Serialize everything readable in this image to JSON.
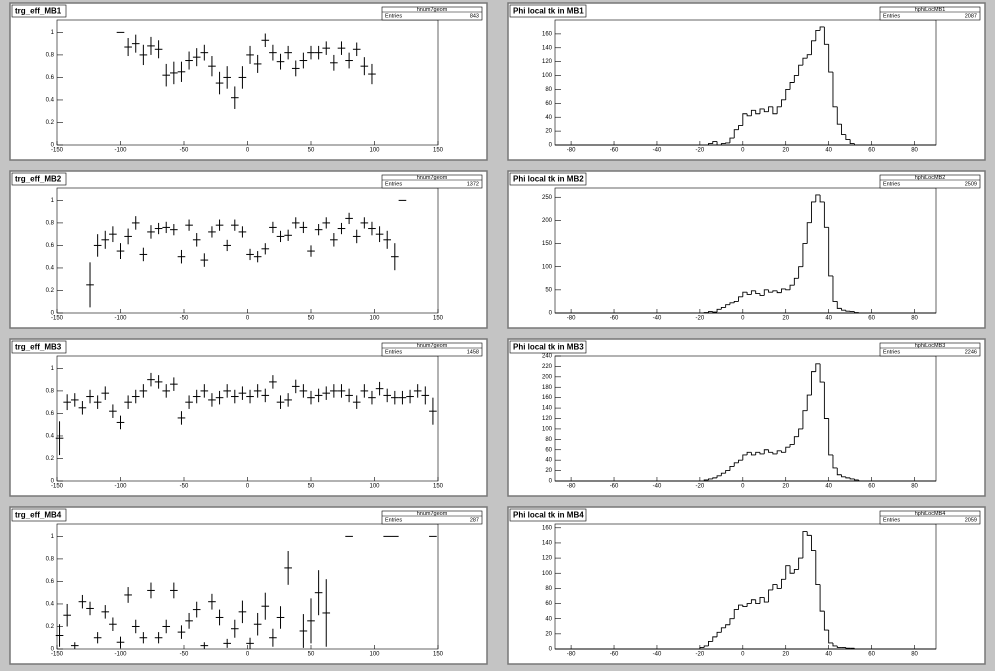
{
  "chart_data": [
    {
      "type": "errorbar",
      "title": "trg_eff_MB1",
      "stats_name": "hnum7geom",
      "entries_label": "Entries",
      "entries": 843,
      "xerr": 3,
      "x": [
        -100,
        -94,
        -88,
        -82,
        -76,
        -70,
        -64,
        -58,
        -52,
        -46,
        -40,
        -34,
        -28,
        -22,
        -16,
        -10,
        -4,
        2,
        8,
        14,
        20,
        26,
        32,
        38,
        44,
        50,
        56,
        62,
        68,
        74,
        80,
        86,
        92,
        98
      ],
      "values": [
        1.0,
        0.87,
        0.9,
        0.8,
        0.88,
        0.85,
        0.62,
        0.64,
        0.65,
        0.75,
        0.78,
        0.82,
        0.7,
        0.55,
        0.6,
        0.42,
        0.6,
        0.8,
        0.72,
        0.93,
        0.82,
        0.74,
        0.82,
        0.68,
        0.75,
        0.82,
        0.82,
        0.86,
        0.73,
        0.86,
        0.75,
        0.85,
        0.7,
        0.63
      ],
      "errors": [
        0,
        0.08,
        0.08,
        0.09,
        0.08,
        0.08,
        0.1,
        0.1,
        0.09,
        0.08,
        0.08,
        0.07,
        0.09,
        0.1,
        0.1,
        0.1,
        0.1,
        0.08,
        0.08,
        0.06,
        0.07,
        0.07,
        0.06,
        0.07,
        0.07,
        0.06,
        0.06,
        0.06,
        0.07,
        0.06,
        0.07,
        0.06,
        0.08,
        0.09
      ],
      "xlim": [
        -150,
        150
      ],
      "xticks": [
        -150,
        -100,
        -50,
        0,
        50,
        100,
        150
      ],
      "ylim": [
        0,
        1.11
      ],
      "yticks": [
        0,
        0.2,
        0.4,
        0.6,
        0.8,
        1
      ]
    },
    {
      "type": "histogram",
      "title": "Phi local tk in MB1",
      "stats_name": "hphiLocMB1",
      "entries_label": "Entries",
      "entries": 2087,
      "bins": [
        -20,
        -18,
        -16,
        -14,
        -12,
        -10,
        -8,
        -6,
        -4,
        -2,
        0,
        2,
        4,
        6,
        8,
        10,
        12,
        14,
        16,
        18,
        20,
        22,
        24,
        26,
        28,
        30,
        32,
        34,
        36,
        38,
        40,
        42,
        44,
        46,
        48,
        50,
        52,
        54,
        56
      ],
      "counts": [
        0,
        0,
        2,
        5,
        0,
        2,
        3,
        10,
        22,
        28,
        45,
        42,
        50,
        45,
        52,
        48,
        55,
        45,
        55,
        65,
        80,
        90,
        100,
        115,
        125,
        130,
        150,
        165,
        170,
        145,
        105,
        55,
        30,
        15,
        8,
        2,
        0,
        0
      ],
      "xlim": [
        -87.5,
        90
      ],
      "xticks": [
        -80,
        -60,
        -40,
        -20,
        0,
        20,
        40,
        60,
        80
      ],
      "ylim": [
        0,
        180
      ],
      "yticks": [
        0,
        20,
        40,
        60,
        80,
        100,
        120,
        140,
        160
      ]
    },
    {
      "type": "errorbar",
      "title": "trg_eff_MB2",
      "stats_name": "hnum7geom",
      "entries_label": "Entries",
      "entries": 1372,
      "xerr": 3,
      "x": [
        -124,
        -118,
        -112,
        -106,
        -100,
        -94,
        -88,
        -82,
        -76,
        -70,
        -64,
        -58,
        -52,
        -46,
        -40,
        -34,
        -28,
        -22,
        -16,
        -10,
        -4,
        2,
        8,
        14,
        20,
        26,
        32,
        38,
        44,
        50,
        56,
        62,
        68,
        74,
        80,
        86,
        92,
        98,
        104,
        110,
        116,
        122
      ],
      "values": [
        0.25,
        0.6,
        0.65,
        0.7,
        0.55,
        0.68,
        0.8,
        0.52,
        0.72,
        0.75,
        0.76,
        0.74,
        0.5,
        0.78,
        0.65,
        0.47,
        0.72,
        0.78,
        0.6,
        0.78,
        0.72,
        0.52,
        0.5,
        0.57,
        0.76,
        0.68,
        0.69,
        0.8,
        0.76,
        0.55,
        0.74,
        0.8,
        0.65,
        0.75,
        0.84,
        0.68,
        0.8,
        0.75,
        0.7,
        0.65,
        0.5,
        1.0
      ],
      "errors": [
        0.2,
        0.1,
        0.08,
        0.07,
        0.07,
        0.07,
        0.06,
        0.06,
        0.06,
        0.05,
        0.05,
        0.05,
        0.06,
        0.05,
        0.06,
        0.06,
        0.05,
        0.05,
        0.05,
        0.05,
        0.05,
        0.05,
        0.05,
        0.05,
        0.05,
        0.05,
        0.05,
        0.05,
        0.05,
        0.05,
        0.05,
        0.05,
        0.06,
        0.05,
        0.05,
        0.06,
        0.05,
        0.06,
        0.07,
        0.08,
        0.12,
        0
      ],
      "xlim": [
        -150,
        150
      ],
      "xticks": [
        -150,
        -100,
        -50,
        0,
        50,
        100,
        150
      ],
      "ylim": [
        0,
        1.11
      ],
      "yticks": [
        0,
        0.2,
        0.4,
        0.6,
        0.8,
        1
      ]
    },
    {
      "type": "histogram",
      "title": "Phi local tk in MB2",
      "stats_name": "hphiLocMB2",
      "entries_label": "Entries",
      "entries": 2509,
      "bins": [
        -20,
        -18,
        -16,
        -14,
        -12,
        -10,
        -8,
        -6,
        -4,
        -2,
        0,
        2,
        4,
        6,
        8,
        10,
        12,
        14,
        16,
        18,
        20,
        22,
        24,
        26,
        28,
        30,
        32,
        34,
        36,
        38,
        40,
        42,
        44,
        46,
        48,
        50,
        52,
        54,
        56
      ],
      "counts": [
        0,
        1,
        3,
        2,
        8,
        12,
        18,
        22,
        25,
        35,
        45,
        40,
        48,
        42,
        38,
        50,
        45,
        48,
        44,
        52,
        50,
        60,
        75,
        100,
        150,
        195,
        240,
        255,
        240,
        185,
        80,
        25,
        10,
        6,
        4,
        3,
        1,
        0
      ],
      "xlim": [
        -87.5,
        90
      ],
      "xticks": [
        -80,
        -60,
        -40,
        -20,
        0,
        20,
        40,
        60,
        80
      ],
      "ylim": [
        0,
        270
      ],
      "yticks": [
        0,
        50,
        100,
        150,
        200,
        250
      ]
    },
    {
      "type": "errorbar",
      "title": "trg_eff_MB3",
      "stats_name": "hnum7geom",
      "entries_label": "Entries",
      "entries": 1458,
      "xerr": 3,
      "x": [
        -148,
        -142,
        -136,
        -130,
        -124,
        -118,
        -112,
        -106,
        -100,
        -94,
        -88,
        -82,
        -76,
        -70,
        -64,
        -58,
        -52,
        -46,
        -40,
        -34,
        -28,
        -22,
        -16,
        -10,
        -4,
        2,
        8,
        14,
        20,
        26,
        32,
        38,
        44,
        50,
        56,
        62,
        68,
        74,
        80,
        86,
        92,
        98,
        104,
        110,
        116,
        122,
        128,
        134,
        140,
        146
      ],
      "values": [
        0.38,
        0.7,
        0.72,
        0.65,
        0.75,
        0.7,
        0.78,
        0.62,
        0.52,
        0.7,
        0.75,
        0.8,
        0.9,
        0.88,
        0.8,
        0.86,
        0.56,
        0.7,
        0.75,
        0.8,
        0.72,
        0.74,
        0.8,
        0.75,
        0.78,
        0.75,
        0.8,
        0.76,
        0.88,
        0.7,
        0.72,
        0.84,
        0.8,
        0.74,
        0.76,
        0.78,
        0.8,
        0.8,
        0.76,
        0.7,
        0.8,
        0.74,
        0.82,
        0.76,
        0.74,
        0.74,
        0.75,
        0.8,
        0.76,
        0.62
      ],
      "errors": [
        0.15,
        0.07,
        0.06,
        0.06,
        0.06,
        0.06,
        0.06,
        0.06,
        0.06,
        0.06,
        0.06,
        0.06,
        0.06,
        0.06,
        0.06,
        0.06,
        0.06,
        0.06,
        0.06,
        0.06,
        0.06,
        0.06,
        0.06,
        0.06,
        0.06,
        0.06,
        0.06,
        0.06,
        0.06,
        0.06,
        0.06,
        0.06,
        0.06,
        0.06,
        0.06,
        0.06,
        0.06,
        0.06,
        0.06,
        0.06,
        0.06,
        0.06,
        0.06,
        0.06,
        0.06,
        0.06,
        0.06,
        0.06,
        0.08,
        0.12
      ],
      "xlim": [
        -150,
        150
      ],
      "xticks": [
        -150,
        -100,
        -50,
        0,
        50,
        100,
        150
      ],
      "ylim": [
        0,
        1.11
      ],
      "yticks": [
        0,
        0.2,
        0.4,
        0.6,
        0.8,
        1
      ]
    },
    {
      "type": "histogram",
      "title": "Phi local tk in MB3",
      "stats_name": "hphiLocMB3",
      "entries_label": "Entries",
      "entries": 2246,
      "bins": [
        -20,
        -18,
        -16,
        -14,
        -12,
        -10,
        -8,
        -6,
        -4,
        -2,
        0,
        2,
        4,
        6,
        8,
        10,
        12,
        14,
        16,
        18,
        20,
        22,
        24,
        26,
        28,
        30,
        32,
        34,
        36,
        38,
        40,
        42,
        44,
        46,
        48,
        50,
        52,
        54,
        56
      ],
      "counts": [
        0,
        2,
        4,
        6,
        10,
        15,
        20,
        28,
        35,
        40,
        50,
        55,
        50,
        55,
        52,
        60,
        55,
        52,
        58,
        55,
        65,
        70,
        85,
        100,
        135,
        165,
        210,
        225,
        190,
        120,
        50,
        25,
        12,
        8,
        6,
        4,
        2,
        0
      ],
      "xlim": [
        -87.5,
        90
      ],
      "xticks": [
        -80,
        -60,
        -40,
        -20,
        0,
        20,
        40,
        60,
        80
      ],
      "ylim": [
        0,
        240
      ],
      "yticks": [
        0,
        20,
        40,
        60,
        80,
        100,
        120,
        140,
        160,
        180,
        200,
        220,
        240
      ]
    },
    {
      "type": "errorbar",
      "title": "trg_eff_MB4",
      "stats_name": "hnum7geom",
      "entries_label": "Entries",
      "entries": 287,
      "xerr": 3,
      "x": [
        -148,
        -142,
        -136,
        -130,
        -124,
        -118,
        -112,
        -106,
        -100,
        -94,
        -88,
        -82,
        -76,
        -70,
        -64,
        -58,
        -52,
        -46,
        -40,
        -34,
        -28,
        -22,
        -16,
        -10,
        -4,
        2,
        8,
        14,
        20,
        26,
        32,
        38,
        44,
        50,
        56,
        62,
        68,
        74,
        80,
        86,
        92,
        98,
        104,
        110,
        116,
        122,
        128,
        134,
        140,
        146
      ],
      "values": [
        0.12,
        0.3,
        0.03,
        0.42,
        0.36,
        0.1,
        0.33,
        0.22,
        0.06,
        0.48,
        0.2,
        0.1,
        0.52,
        0.1,
        0.2,
        0.52,
        0.15,
        0.25,
        0.35,
        0.03,
        0.42,
        0.28,
        0.05,
        0.18,
        0.33,
        0.05,
        0.22,
        0.38,
        0.1,
        0.28,
        0.72,
        null,
        0.16,
        0.25,
        0.5,
        0.32,
        null,
        null,
        1,
        null,
        null,
        null,
        null,
        1,
        1,
        null,
        null,
        null,
        null,
        1
      ],
      "errors": [
        0.1,
        0.1,
        0.03,
        0.06,
        0.06,
        0.05,
        0.06,
        0.06,
        0.05,
        0.07,
        0.06,
        0.05,
        0.07,
        0.05,
        0.06,
        0.07,
        0.06,
        0.07,
        0.07,
        0.03,
        0.07,
        0.07,
        0.04,
        0.08,
        0.1,
        0.05,
        0.1,
        0.12,
        0.08,
        0.1,
        0.15,
        null,
        0.15,
        0.2,
        0.2,
        0.3,
        null,
        null,
        0,
        null,
        null,
        null,
        null,
        0,
        0,
        null,
        null,
        null,
        null,
        0
      ],
      "xlim": [
        -150,
        150
      ],
      "xticks": [
        -150,
        -100,
        -50,
        0,
        50,
        100,
        150
      ],
      "ylim": [
        0,
        1.11
      ],
      "yticks": [
        0,
        0.2,
        0.4,
        0.6,
        0.8,
        1
      ]
    },
    {
      "type": "histogram",
      "title": "Phi local tk in MB4",
      "stats_name": "hphiLocMB4",
      "entries_label": "Entries",
      "entries": 2059,
      "bins": [
        -20,
        -18,
        -16,
        -14,
        -12,
        -10,
        -8,
        -6,
        -4,
        -2,
        0,
        2,
        4,
        6,
        8,
        10,
        12,
        14,
        16,
        18,
        20,
        22,
        24,
        26,
        28,
        30,
        32,
        34,
        36,
        38,
        40,
        42,
        44,
        46,
        48,
        50,
        52,
        54,
        56
      ],
      "counts": [
        2,
        4,
        10,
        16,
        22,
        28,
        32,
        40,
        52,
        58,
        56,
        60,
        65,
        60,
        68,
        62,
        78,
        85,
        80,
        92,
        110,
        100,
        105,
        120,
        155,
        150,
        130,
        85,
        50,
        25,
        8,
        4,
        2,
        2,
        1,
        1,
        0,
        0
      ],
      "xlim": [
        -87.5,
        90
      ],
      "xticks": [
        -80,
        -60,
        -40,
        -20,
        0,
        20,
        40,
        60,
        80
      ],
      "ylim": [
        0,
        165
      ],
      "yticks": [
        0,
        20,
        40,
        60,
        80,
        100,
        120,
        140,
        160
      ]
    }
  ]
}
